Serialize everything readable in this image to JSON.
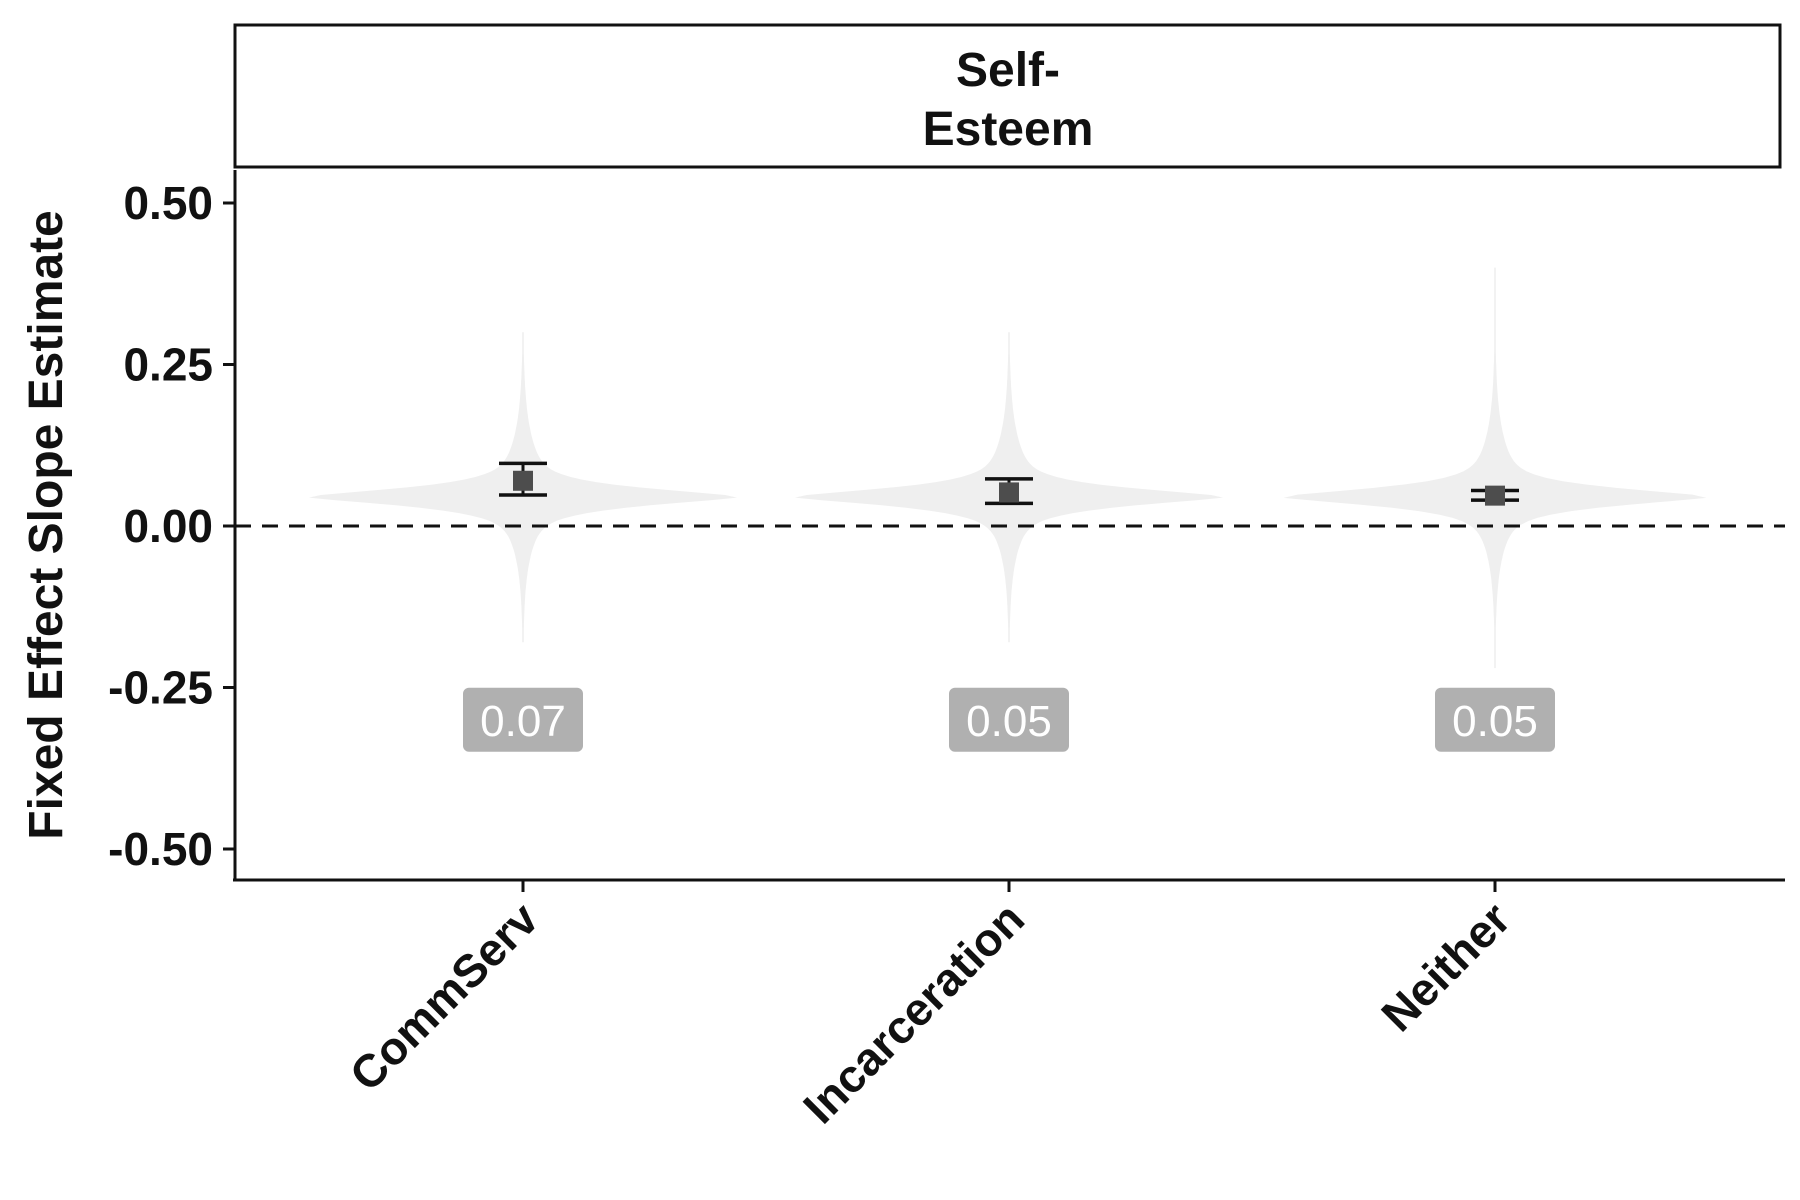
{
  "chart_data": {
    "type": "violin",
    "panel_title": [
      "Self-",
      "Esteem"
    ],
    "xlabel": "",
    "ylabel": "Fixed Effect Slope Estimate",
    "categories": [
      "CommServ",
      "Incarceration",
      "Neither"
    ],
    "estimates": [
      0.07,
      0.052,
      0.047
    ],
    "ci_lower": [
      0.048,
      0.035,
      0.04
    ],
    "ci_upper": [
      0.097,
      0.073,
      0.055
    ],
    "violin_range": [
      [
        -0.18,
        0.3
      ],
      [
        -0.18,
        0.3
      ],
      [
        -0.22,
        0.4
      ]
    ],
    "violin_mode": 0.045,
    "data_labels": [
      "0.07",
      "0.05",
      "0.05"
    ],
    "data_label_y": -0.3,
    "reference_line": 0,
    "ylim": [
      -0.55,
      0.55
    ],
    "yticks": [
      0.5,
      0.25,
      0.0,
      -0.25,
      -0.5
    ],
    "ytick_labels": [
      "0.50",
      "0.25",
      "0.00",
      "-0.25",
      "-0.50"
    ],
    "grid": false,
    "colors": {
      "violin": "#efefef",
      "point": "#4d4d4d",
      "errorbar": "#111111",
      "label_box": "#b0b0b0",
      "label_text": "#ffffff",
      "axis": "#111111"
    }
  }
}
